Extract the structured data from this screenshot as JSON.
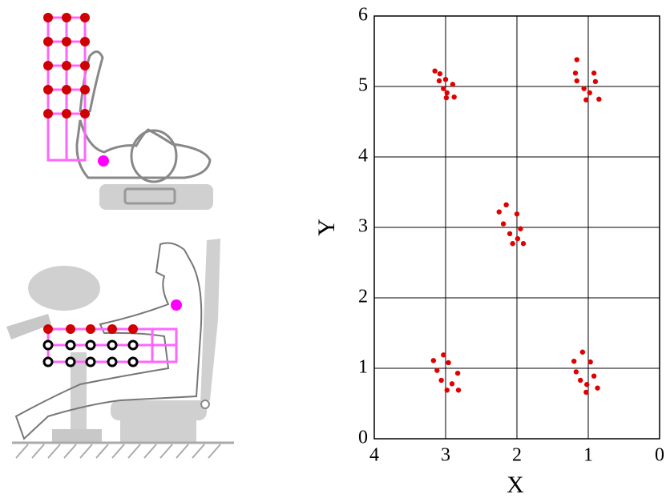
{
  "chart_data": {
    "type": "scatter",
    "x_label": "X",
    "y_label": "Y",
    "xlim": [
      4,
      0
    ],
    "ylim": [
      0,
      6
    ],
    "xticks": [
      4,
      3,
      2,
      1,
      0
    ],
    "yticks": [
      0,
      1,
      2,
      3,
      4,
      5,
      6
    ],
    "grid": true,
    "color": "#e00000",
    "x": [
      3.15,
      3.08,
      3.09,
      3.0,
      2.9,
      3.03,
      2.98,
      2.88,
      2.99,
      1.16,
      1.18,
      0.92,
      1.16,
      0.9,
      1.06,
      0.98,
      0.85,
      1.03,
      2.15,
      2.25,
      2.0,
      2.19,
      1.95,
      2.1,
      1.99,
      1.91,
      2.06,
      3.03,
      3.17,
      2.96,
      3.12,
      2.83,
      3.06,
      2.91,
      2.82,
      2.98,
      1.08,
      1.2,
      0.97,
      1.17,
      0.92,
      1.11,
      1.02,
      0.87,
      1.03
    ],
    "y": [
      5.22,
      5.18,
      5.08,
      5.1,
      5.03,
      4.97,
      4.91,
      4.85,
      4.84,
      5.38,
      5.19,
      5.19,
      5.08,
      5.07,
      4.97,
      4.91,
      4.82,
      4.81,
      3.32,
      3.22,
      3.19,
      3.05,
      2.98,
      2.91,
      2.84,
      2.77,
      2.77,
      1.19,
      1.11,
      1.08,
      0.97,
      0.93,
      0.83,
      0.78,
      0.69,
      0.69,
      1.23,
      1.1,
      1.09,
      0.95,
      0.89,
      0.83,
      0.77,
      0.72,
      0.66
    ]
  }
}
